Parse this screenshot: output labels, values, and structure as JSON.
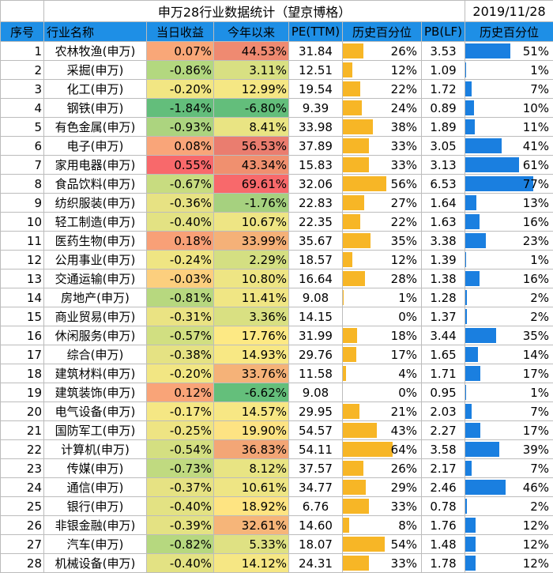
{
  "title": "申万28行业数据统计（望京博格）",
  "date": "2019/11/28",
  "headers": [
    "序号",
    "行业名称",
    "当日收益",
    "今年以来",
    "PE(TTM)",
    "历史百分位",
    "PB(LF)",
    "历史百分位"
  ],
  "rows": [
    {
      "idx": "1",
      "name": "农林牧渔(申万)",
      "day": "0.07%",
      "ytd": "44.53%",
      "pe": "31.84",
      "pe_pct": "26%",
      "pb": "3.53",
      "pb_pct": "51%",
      "day_color": "#f9a778",
      "ytd_color": "#ef8a71"
    },
    {
      "idx": "2",
      "name": "采掘(申万)",
      "day": "-0.86%",
      "ytd": "3.11%",
      "pe": "12.51",
      "pe_pct": "12%",
      "pb": "1.09",
      "pb_pct": "1%",
      "day_color": "#b3d87f",
      "ytd_color": "#d8e082"
    },
    {
      "idx": "3",
      "name": "化工(申万)",
      "day": "-0.20%",
      "ytd": "12.99%",
      "pe": "19.54",
      "pe_pct": "22%",
      "pb": "1.72",
      "pb_pct": "7%",
      "day_color": "#f2e683",
      "ytd_color": "#f5e784"
    },
    {
      "idx": "4",
      "name": "钢铁(申万)",
      "day": "-1.84%",
      "ytd": "-6.80%",
      "pe": "9.39",
      "pe_pct": "24%",
      "pb": "0.89",
      "pb_pct": "10%",
      "day_color": "#63be7b",
      "ytd_color": "#63be7b"
    },
    {
      "idx": "5",
      "name": "有色金属(申万)",
      "day": "-0.93%",
      "ytd": "8.41%",
      "pe": "33.98",
      "pe_pct": "38%",
      "pb": "1.89",
      "pb_pct": "11%",
      "day_color": "#acd47f",
      "ytd_color": "#e9e483"
    },
    {
      "idx": "6",
      "name": "电子(申万)",
      "day": "0.08%",
      "ytd": "56.53%",
      "pe": "37.89",
      "pe_pct": "33%",
      "pb": "3.05",
      "pb_pct": "41%",
      "day_color": "#f9a579",
      "ytd_color": "#ea7d6f"
    },
    {
      "idx": "7",
      "name": "家用电器(申万)",
      "day": "0.55%",
      "ytd": "43.34%",
      "pe": "15.83",
      "pe_pct": "33%",
      "pb": "3.13",
      "pb_pct": "61%",
      "day_color": "#f8696b",
      "ytd_color": "#f0906f"
    },
    {
      "idx": "8",
      "name": "食品饮料(申万)",
      "day": "-0.67%",
      "ytd": "69.61%",
      "pe": "32.06",
      "pe_pct": "56%",
      "pb": "6.53",
      "pb_pct": "77%",
      "day_color": "#c8dc80",
      "ytd_color": "#f8696b"
    },
    {
      "idx": "9",
      "name": "纺织服装(申万)",
      "day": "-0.36%",
      "ytd": "-1.76%",
      "pe": "22.83",
      "pe_pct": "27%",
      "pb": "1.64",
      "pb_pct": "13%",
      "day_color": "#e7e283",
      "ytd_color": "#a6d17f"
    },
    {
      "idx": "10",
      "name": "轻工制造(申万)",
      "day": "-0.40%",
      "ytd": "10.67%",
      "pe": "22.35",
      "pe_pct": "22%",
      "pb": "1.63",
      "pb_pct": "16%",
      "day_color": "#e3e283",
      "ytd_color": "#eee584"
    },
    {
      "idx": "11",
      "name": "医药生物(申万)",
      "day": "0.18%",
      "ytd": "33.99%",
      "pe": "35.67",
      "pe_pct": "35%",
      "pb": "3.38",
      "pb_pct": "23%",
      "day_color": "#f8a077",
      "ytd_color": "#f5b178"
    },
    {
      "idx": "12",
      "name": "公用事业(申万)",
      "day": "-0.24%",
      "ytd": "2.29%",
      "pe": "18.57",
      "pe_pct": "12%",
      "pb": "1.39",
      "pb_pct": "1%",
      "day_color": "#efe583",
      "ytd_color": "#d4df82"
    },
    {
      "idx": "13",
      "name": "交通运输(申万)",
      "day": "-0.03%",
      "ytd": "10.80%",
      "pe": "16.64",
      "pe_pct": "28%",
      "pb": "1.38",
      "pb_pct": "16%",
      "day_color": "#fccf7e",
      "ytd_color": "#eee584"
    },
    {
      "idx": "14",
      "name": "房地产(申万)",
      "day": "-0.81%",
      "ytd": "11.41%",
      "pe": "9.08",
      "pe_pct": "1%",
      "pb": "1.28",
      "pb_pct": "2%",
      "day_color": "#b7d87f",
      "ytd_color": "#f0e684"
    },
    {
      "idx": "15",
      "name": "商业贸易(申万)",
      "day": "-0.31%",
      "ytd": "3.36%",
      "pe": "14.15",
      "pe_pct": "0%",
      "pb": "1.37",
      "pb_pct": "2%",
      "day_color": "#eae383",
      "ytd_color": "#d9e082"
    },
    {
      "idx": "16",
      "name": "休闲服务(申万)",
      "day": "-0.57%",
      "ytd": "17.76%",
      "pe": "31.99",
      "pe_pct": "18%",
      "pb": "3.44",
      "pb_pct": "35%",
      "day_color": "#d1df81",
      "ytd_color": "#fde984"
    },
    {
      "idx": "17",
      "name": "综合(申万)",
      "day": "-0.38%",
      "ytd": "14.93%",
      "pe": "29.76",
      "pe_pct": "17%",
      "pb": "1.65",
      "pb_pct": "14%",
      "day_color": "#e5e283",
      "ytd_color": "#f8e884"
    },
    {
      "idx": "18",
      "name": "建筑材料(申万)",
      "day": "-0.20%",
      "ytd": "33.76%",
      "pe": "11.58",
      "pe_pct": "4%",
      "pb": "1.71",
      "pb_pct": "17%",
      "day_color": "#f2e683",
      "ytd_color": "#f5b278"
    },
    {
      "idx": "19",
      "name": "建筑装饰(申万)",
      "day": "0.12%",
      "ytd": "-6.62%",
      "pe": "9.08",
      "pe_pct": "0%",
      "pb": "0.95",
      "pb_pct": "1%",
      "day_color": "#f9a478",
      "ytd_color": "#64bf7b"
    },
    {
      "idx": "20",
      "name": "电气设备(申万)",
      "day": "-0.17%",
      "ytd": "14.57%",
      "pe": "29.95",
      "pe_pct": "21%",
      "pb": "2.03",
      "pb_pct": "7%",
      "day_color": "#f5e784",
      "ytd_color": "#f7e784"
    },
    {
      "idx": "21",
      "name": "国防军工(申万)",
      "day": "-0.25%",
      "ytd": "19.90%",
      "pe": "54.57",
      "pe_pct": "43%",
      "pb": "2.27",
      "pb_pct": "17%",
      "day_color": "#eee483",
      "ytd_color": "#fde383"
    },
    {
      "idx": "22",
      "name": "计算机(申万)",
      "day": "-0.54%",
      "ytd": "36.83%",
      "pe": "54.11",
      "pe_pct": "64%",
      "pb": "3.58",
      "pb_pct": "39%",
      "day_color": "#d4df81",
      "ytd_color": "#f3a676"
    },
    {
      "idx": "23",
      "name": "传媒(申万)",
      "day": "-0.73%",
      "ytd": "8.12%",
      "pe": "37.57",
      "pe_pct": "26%",
      "pb": "2.17",
      "pb_pct": "7%",
      "day_color": "#c0da80",
      "ytd_color": "#e8e483"
    },
    {
      "idx": "24",
      "name": "通信(申万)",
      "day": "-0.37%",
      "ytd": "10.61%",
      "pe": "34.77",
      "pe_pct": "29%",
      "pb": "2.46",
      "pb_pct": "46%",
      "day_color": "#e6e283",
      "ytd_color": "#eee584"
    },
    {
      "idx": "25",
      "name": "银行(申万)",
      "day": "-0.40%",
      "ytd": "18.92%",
      "pe": "6.76",
      "pe_pct": "33%",
      "pb": "0.78",
      "pb_pct": "2%",
      "day_color": "#e3e283",
      "ytd_color": "#fee482"
    },
    {
      "idx": "26",
      "name": "非银金融(申万)",
      "day": "-0.39%",
      "ytd": "32.61%",
      "pe": "14.60",
      "pe_pct": "8%",
      "pb": "1.76",
      "pb_pct": "12%",
      "day_color": "#e4e283",
      "ytd_color": "#f6b579"
    },
    {
      "idx": "27",
      "name": "汽车(申万)",
      "day": "-0.82%",
      "ytd": "5.33%",
      "pe": "18.07",
      "pe_pct": "54%",
      "pb": "1.48",
      "pb_pct": "12%",
      "day_color": "#b6d87f",
      "ytd_color": "#dfe183"
    },
    {
      "idx": "28",
      "name": "机械设备(申万)",
      "day": "-0.40%",
      "ytd": "14.12%",
      "pe": "24.31",
      "pe_pct": "33%",
      "pb": "1.78",
      "pb_pct": "12%",
      "day_color": "#e3e283",
      "ytd_color": "#f6e784"
    }
  ],
  "colors": {
    "header_bg": "#1e8fe6",
    "pe_bar": "#f7b626",
    "pb_bar": "#1a7fe0"
  }
}
